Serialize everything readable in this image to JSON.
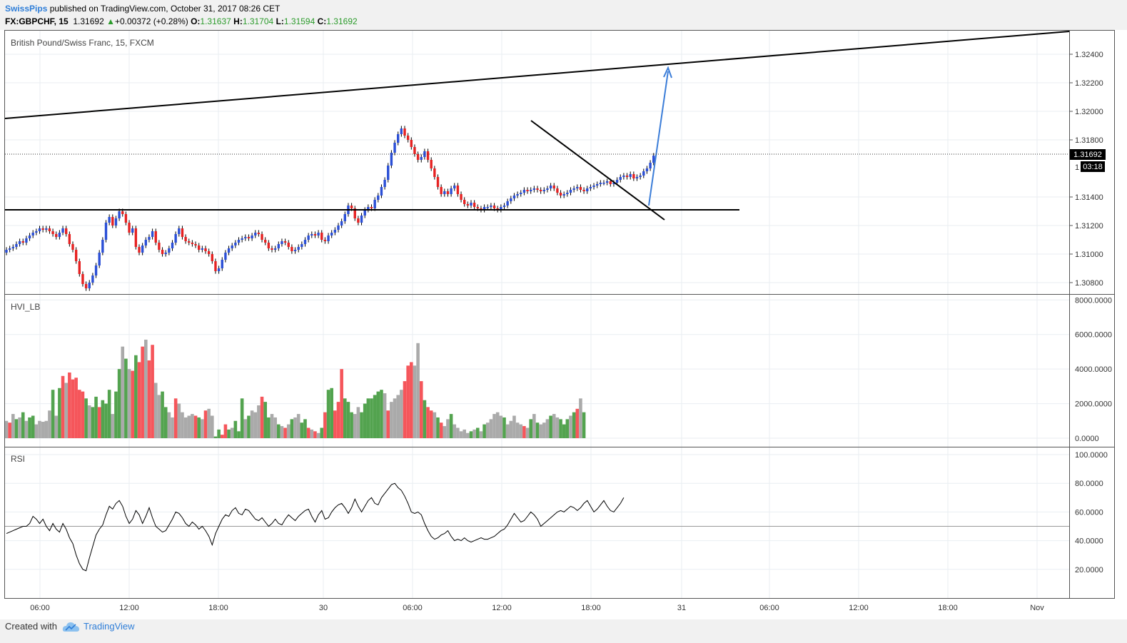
{
  "header": {
    "author": "SwissPips",
    "published": "published on TradingView.com, October 31, 2017 08:26 CET",
    "symbol_line": "FX:GBPCHF, 15",
    "last": "1.31692",
    "change": "+0.00372 (+0.28%)",
    "o_label": "O:",
    "o": "1.31637",
    "h_label": "H:",
    "h": "1.31704",
    "l_label": "L:",
    "l": "1.31594",
    "c_label": "C:",
    "c": "1.31692"
  },
  "footer": {
    "created_with": "Created with",
    "brand": "TradingView"
  },
  "colors": {
    "up": "#2b4fd6",
    "down": "#e62222",
    "vol_up": "#53a34f",
    "vol_down": "#f5565b",
    "vol_neutral": "#aaaaaa",
    "grid": "#e9eef2",
    "arrow": "#3b7dd8"
  },
  "chart_data": [
    {
      "type": "candlestick",
      "title": "British Pound/Swiss Franc, 15, FXCM",
      "y_ticks": [
        "1.32400",
        "1.32200",
        "1.32000",
        "1.31800",
        "1.31400",
        "1.31200",
        "1.31000",
        "1.30800"
      ],
      "ylim": [
        1.3072,
        1.3257
      ],
      "x_ticks": [
        "06:00",
        "12:00",
        "18:00",
        "30",
        "06:00",
        "12:00",
        "18:00",
        "31",
        "06:00",
        "12:00",
        "18:00",
        "Nov"
      ],
      "last_price_label": "1.31692",
      "countdown_label": "03:18",
      "partial_price_label": "1",
      "closes": [
        1.3103,
        1.3104,
        1.3105,
        1.3107,
        1.3109,
        1.3108,
        1.3111,
        1.3113,
        1.3115,
        1.3116,
        1.3118,
        1.3117,
        1.3118,
        1.3116,
        1.3114,
        1.3112,
        1.3115,
        1.3118,
        1.3114,
        1.3107,
        1.3103,
        1.3095,
        1.3086,
        1.3079,
        1.3076,
        1.308,
        1.3085,
        1.3092,
        1.3101,
        1.311,
        1.3122,
        1.3126,
        1.312,
        1.3125,
        1.313,
        1.3128,
        1.3122,
        1.3115,
        1.3118,
        1.3105,
        1.3101,
        1.3106,
        1.311,
        1.3112,
        1.3116,
        1.3108,
        1.3103,
        1.31,
        1.3101,
        1.3104,
        1.3108,
        1.3114,
        1.3118,
        1.3112,
        1.3109,
        1.3108,
        1.3107,
        1.3106,
        1.3103,
        1.3104,
        1.3102,
        1.31,
        1.3095,
        1.3088,
        1.309,
        1.3096,
        1.3101,
        1.3104,
        1.3106,
        1.3108,
        1.311,
        1.3111,
        1.3112,
        1.3111,
        1.3113,
        1.3115,
        1.3114,
        1.311,
        1.3108,
        1.3104,
        1.3103,
        1.3104,
        1.3107,
        1.3109,
        1.3108,
        1.3105,
        1.3102,
        1.3103,
        1.3105,
        1.3107,
        1.311,
        1.3113,
        1.3114,
        1.3113,
        1.3115,
        1.311,
        1.3109,
        1.3113,
        1.3115,
        1.3117,
        1.312,
        1.3123,
        1.3128,
        1.3134,
        1.3132,
        1.3125,
        1.3122,
        1.3127,
        1.3131,
        1.3133,
        1.3132,
        1.3138,
        1.3141,
        1.3147,
        1.3152,
        1.3162,
        1.3171,
        1.3178,
        1.3184,
        1.3188,
        1.3183,
        1.318,
        1.3175,
        1.317,
        1.3166,
        1.3168,
        1.3172,
        1.3166,
        1.316,
        1.3154,
        1.3147,
        1.3142,
        1.3144,
        1.3142,
        1.3146,
        1.3148,
        1.3142,
        1.3138,
        1.3135,
        1.3134,
        1.3136,
        1.3133,
        1.3132,
        1.3131,
        1.3133,
        1.3133,
        1.3134,
        1.3132,
        1.3131,
        1.3133,
        1.3134,
        1.3137,
        1.3139,
        1.3141,
        1.3142,
        1.3143,
        1.3145,
        1.3144,
        1.3145,
        1.3146,
        1.3145,
        1.3144,
        1.3145,
        1.3146,
        1.3148,
        1.3146,
        1.3143,
        1.3141,
        1.3142,
        1.3143,
        1.3145,
        1.3146,
        1.3147,
        1.3145,
        1.3144,
        1.3146,
        1.3147,
        1.3148,
        1.3149,
        1.315,
        1.315,
        1.3151,
        1.3149,
        1.315,
        1.3152,
        1.3154,
        1.3155,
        1.3154,
        1.3156,
        1.3153,
        1.3154,
        1.3155,
        1.3158,
        1.316,
        1.3164,
        1.3169
      ]
    },
    {
      "type": "bar",
      "title": "HVI_LB",
      "y_ticks": [
        "8000.0000",
        "6000.0000",
        "4000.0000",
        "2000.0000",
        "0.0000"
      ],
      "ylim": [
        0,
        8300
      ],
      "series": [
        {
          "values": [
            1000,
            900,
            1400,
            1100,
            1200,
            1500,
            1000,
            1200,
            1300,
            800,
            1000,
            950,
            1000,
            1600,
            2800,
            1300,
            2900,
            3600,
            3200,
            3800,
            3400,
            3500,
            2800,
            2700,
            2300,
            1900,
            1800,
            2400,
            1800,
            2200,
            2000,
            2800,
            1400,
            2700,
            4000,
            5300,
            4600,
            4000,
            3900,
            4800,
            4400,
            5300,
            5700,
            4500,
            5400,
            3200,
            2500,
            2700,
            1800,
            1500,
            1200,
            2300,
            2000,
            1500,
            1200,
            1300,
            1400,
            1300,
            1200,
            1100,
            1600,
            1700,
            1300,
            100,
            500,
            200,
            800,
            500,
            600,
            1000,
            400,
            2300,
            1100,
            1300,
            1600,
            1500,
            1900,
            2400,
            2100,
            1200,
            1400,
            1200,
            800,
            700,
            600,
            800,
            1100,
            1200,
            1400,
            900,
            1100,
            600,
            500,
            400,
            300,
            600,
            1500,
            2800,
            2900,
            1600,
            2100,
            4000,
            2300,
            2100,
            1500,
            1400,
            1800,
            1500,
            2000,
            2300,
            2300,
            2500,
            2700,
            2800,
            2600,
            1600,
            2100,
            2300,
            2500,
            2800,
            3300,
            4200,
            4400,
            4200,
            5500,
            3300,
            2200,
            1800,
            1600,
            1500,
            1200,
            900,
            700,
            1100,
            1400,
            800,
            600,
            400,
            500,
            300,
            400,
            500,
            600,
            400,
            800,
            900,
            1100,
            1400,
            1500,
            1300,
            1200,
            800,
            1000,
            1300,
            900,
            800,
            700,
            600,
            1100,
            1400,
            900,
            800,
            900,
            1100,
            1300,
            1400,
            1200,
            1100,
            800,
            1100,
            1300,
            1500,
            1700,
            2300,
            1500
          ]
        }
      ],
      "colors": [
        "neutral",
        "down",
        "neutral",
        "up",
        "neutral",
        "up",
        "neutral",
        "up",
        "up",
        "neutral",
        "neutral",
        "neutral",
        "neutral",
        "neutral",
        "up",
        "neutral",
        "up",
        "down",
        "neutral",
        "down",
        "down",
        "down",
        "down",
        "down",
        "up",
        "neutral",
        "up",
        "up",
        "down",
        "up",
        "up",
        "up",
        "neutral",
        "up",
        "up",
        "neutral",
        "up",
        "neutral",
        "down",
        "up",
        "down",
        "down",
        "neutral",
        "down",
        "down",
        "neutral",
        "neutral",
        "up",
        "up",
        "neutral",
        "neutral",
        "down",
        "neutral",
        "neutral",
        "neutral",
        "neutral",
        "neutral",
        "down",
        "up",
        "neutral",
        "down",
        "neutral",
        "neutral",
        "up",
        "up",
        "down",
        "down",
        "up",
        "neutral",
        "up",
        "up",
        "up",
        "neutral",
        "up",
        "neutral",
        "neutral",
        "neutral",
        "down",
        "up",
        "up",
        "neutral",
        "neutral",
        "up",
        "neutral",
        "down",
        "neutral",
        "up",
        "neutral",
        "neutral",
        "up",
        "up",
        "down",
        "neutral",
        "down",
        "neutral",
        "up",
        "down",
        "up",
        "up",
        "down",
        "down",
        "down",
        "up",
        "up",
        "up",
        "neutral",
        "neutral",
        "up",
        "up",
        "up",
        "up",
        "up",
        "up",
        "up",
        "neutral",
        "down",
        "neutral",
        "neutral",
        "neutral",
        "neutral",
        "down",
        "down",
        "down",
        "neutral",
        "neutral",
        "down",
        "up",
        "down",
        "down",
        "neutral",
        "up",
        "down",
        "neutral",
        "neutral",
        "up",
        "neutral",
        "neutral",
        "neutral",
        "neutral",
        "neutral",
        "up",
        "neutral",
        "up",
        "neutral",
        "up",
        "neutral",
        "neutral",
        "neutral",
        "neutral",
        "neutral",
        "up",
        "neutral",
        "neutral",
        "neutral",
        "neutral",
        "neutral",
        "down",
        "neutral",
        "up",
        "neutral",
        "up",
        "neutral",
        "neutral",
        "neutral",
        "up",
        "neutral",
        "neutral",
        "up",
        "up",
        "up",
        "neutral",
        "up",
        "down",
        "neutral",
        "up",
        "down",
        "up",
        "up"
      ]
    },
    {
      "type": "line",
      "title": "RSI",
      "y_ticks": [
        "100.0000",
        "80.0000",
        "60.0000",
        "40.0000",
        "20.0000"
      ],
      "ylim": [
        0,
        105
      ],
      "reference_line": 50,
      "series": [
        {
          "values": [
            45,
            46,
            47,
            48,
            49,
            50,
            50,
            52,
            57,
            55,
            52,
            55,
            50,
            47,
            52,
            48,
            46,
            52,
            48,
            42,
            38,
            30,
            24,
            20,
            19,
            28,
            36,
            44,
            48,
            51,
            58,
            64,
            62,
            66,
            68,
            64,
            57,
            52,
            55,
            61,
            58,
            52,
            57,
            63,
            56,
            50,
            48,
            46,
            47,
            51,
            55,
            60,
            59,
            56,
            52,
            50,
            53,
            51,
            48,
            50,
            47,
            43,
            37,
            45,
            50,
            55,
            58,
            57,
            61,
            63,
            59,
            58,
            62,
            61,
            58,
            55,
            54,
            56,
            53,
            50,
            52,
            55,
            52,
            51,
            55,
            58,
            56,
            54,
            57,
            59,
            61,
            62,
            57,
            53,
            58,
            61,
            55,
            56,
            60,
            63,
            65,
            66,
            63,
            59,
            63,
            69,
            64,
            60,
            64,
            68,
            70,
            66,
            65,
            70,
            73,
            76,
            79,
            80,
            77,
            75,
            71,
            66,
            60,
            59,
            60,
            58,
            52,
            47,
            43,
            41,
            42,
            44,
            45,
            47,
            43,
            40,
            41,
            40,
            42,
            40,
            39,
            40,
            41,
            42,
            41,
            41,
            42,
            43,
            45,
            47,
            48,
            51,
            55,
            59,
            56,
            53,
            54,
            57,
            60,
            58,
            55,
            50,
            52,
            54,
            56,
            58,
            60,
            61,
            60,
            62,
            64,
            63,
            61,
            63,
            66,
            68,
            64,
            60,
            62,
            65,
            68,
            64,
            61,
            60,
            63,
            66,
            70
          ]
        }
      ]
    }
  ]
}
